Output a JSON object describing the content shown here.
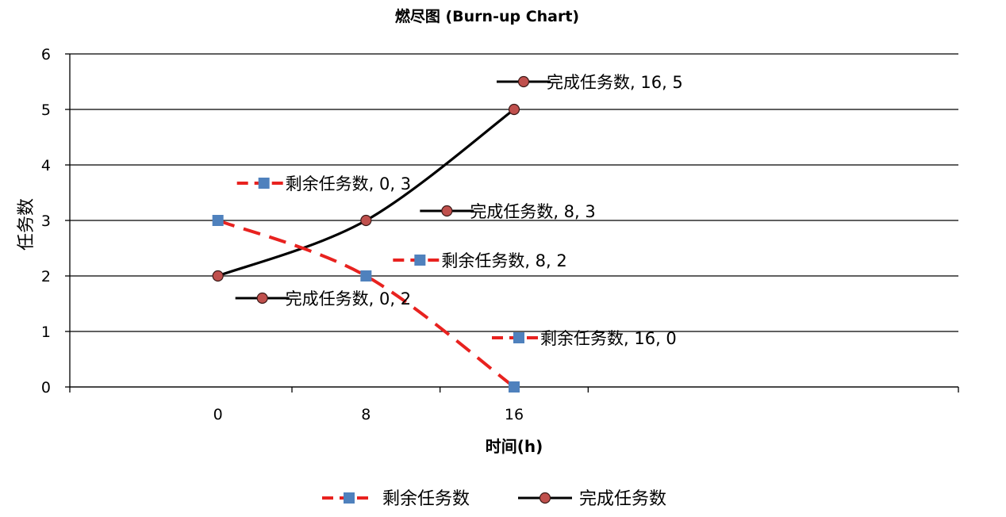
{
  "chart_data": {
    "type": "line",
    "title": "燃尽图 (Burn-up Chart)",
    "xlabel": "时间(h)",
    "ylabel": "任务数",
    "x": [
      0,
      8,
      16
    ],
    "x_tick_labels": [
      "0",
      "8",
      "16"
    ],
    "xlim": [
      -8,
      40
    ],
    "ylim": [
      0,
      6
    ],
    "y_ticks": [
      0,
      1,
      2,
      3,
      4,
      5,
      6
    ],
    "grid": true,
    "legend_position": "bottom",
    "series": [
      {
        "name": "剩余任务数",
        "values": [
          3,
          2,
          0
        ],
        "color": "#e8221f",
        "marker_color": "#4f81bd",
        "marker": "square",
        "line_style": "dashed",
        "data_labels": [
          "剩余任务数, 0, 3",
          "剩余任务数, 8, 2",
          "剩余任务数, 16, 0"
        ]
      },
      {
        "name": "完成任务数",
        "values": [
          2,
          3,
          5
        ],
        "color": "#000000",
        "marker_color": "#c0504d",
        "marker": "circle",
        "line_style": "solid",
        "data_labels": [
          "完成任务数, 0, 2",
          "完成任务数, 8, 3",
          "完成任务数, 16, 5"
        ]
      }
    ]
  }
}
